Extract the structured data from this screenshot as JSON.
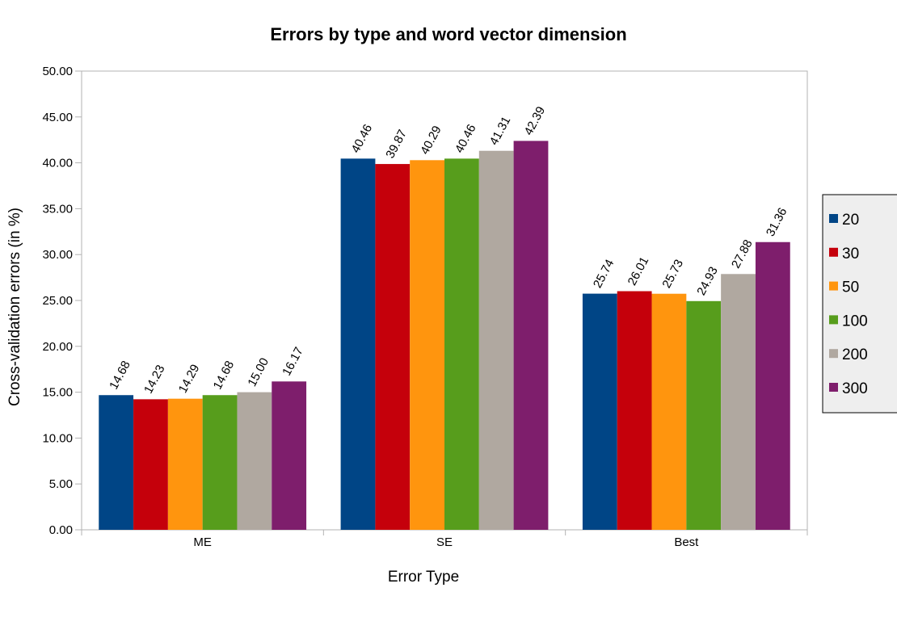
{
  "chart_data": {
    "type": "bar",
    "title": "Errors by type and word vector dimension",
    "xlabel": "Error Type",
    "ylabel": "Cross-validation errors (in %)",
    "categories": [
      "ME",
      "SE",
      "Best"
    ],
    "ylim": [
      0,
      50
    ],
    "ytick_step": 5,
    "ytick_decimals": 2,
    "grid": false,
    "legend_position": "right",
    "series": [
      {
        "name": "20",
        "color": "#004586",
        "values": [
          14.68,
          40.46,
          25.74
        ]
      },
      {
        "name": "30",
        "color": "#c5000b",
        "values": [
          14.23,
          39.87,
          26.01
        ]
      },
      {
        "name": "50",
        "color": "#ff950e",
        "values": [
          14.29,
          40.29,
          25.73
        ]
      },
      {
        "name": "100",
        "color": "#579d1c",
        "values": [
          14.68,
          40.46,
          24.93
        ]
      },
      {
        "name": "200",
        "color": "#b0a8a0",
        "values": [
          15.0,
          41.31,
          27.88
        ]
      },
      {
        "name": "300",
        "color": "#7e1e6c",
        "values": [
          16.17,
          42.39,
          31.36
        ]
      }
    ]
  }
}
